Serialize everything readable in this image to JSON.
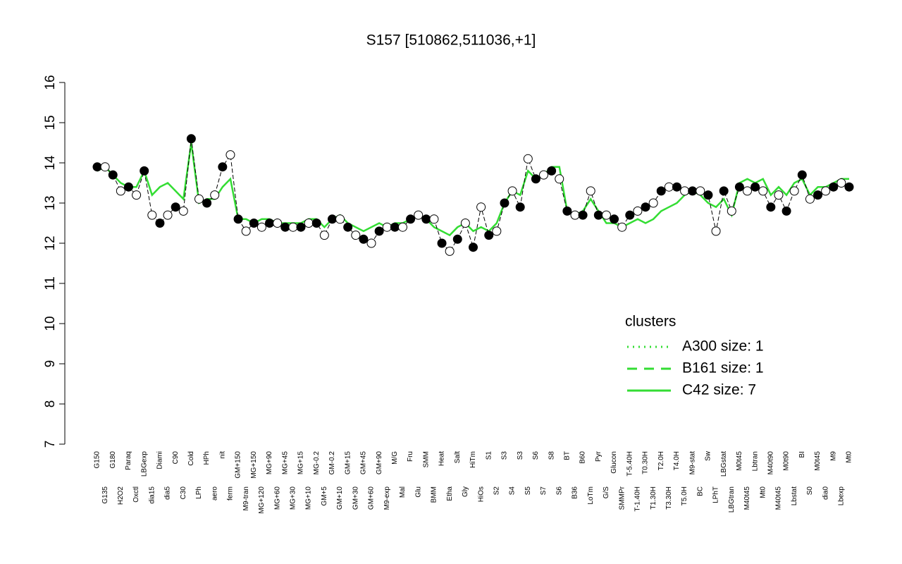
{
  "chart_data": {
    "type": "line",
    "title": "S157 [510862,511036,+1]",
    "ylim": [
      7,
      16
    ],
    "yticks": [
      7,
      8,
      9,
      10,
      11,
      12,
      13,
      14,
      15,
      16
    ],
    "categories": [
      "G150",
      "G135",
      "G180",
      "H2O2",
      "Paraq",
      "Oxctl",
      "LBGexp",
      "dia15",
      "Diami",
      "dia5",
      "C90",
      "C30",
      "Cold",
      "LPh",
      "HPh",
      "aero",
      "nit",
      "ferm",
      "GM+150",
      "M9-tran",
      "MG+150",
      "MG+120",
      "MG+90",
      "MG+60",
      "MG+45",
      "MG+30",
      "MG+15",
      "MG+10",
      "MG-0.2",
      "GM+5",
      "GM-0.2",
      "GM+10",
      "GM+15",
      "GM+30",
      "GM+45",
      "GM+60",
      "GM+90",
      "M9-exp",
      "M/G",
      "Mal",
      "Fru",
      "Glu",
      "SMM",
      "BMM",
      "Heat",
      "Etha",
      "Salt",
      "Gly",
      "HiTm",
      "HiOs",
      "S1",
      "S2",
      "S3",
      "S4",
      "S3",
      "S5",
      "S6",
      "S7",
      "S8",
      "S6",
      "BT",
      "B36",
      "B60",
      "LoTm",
      "Pyr",
      "G/S",
      "Glucon",
      "SMMPr",
      "T-5.40H",
      "T-1.40H",
      "T0.30H",
      "T1.30H",
      "T2.0H",
      "T3.30H",
      "T4.0H",
      "T5.0H",
      "M9-stat",
      "BC",
      "Sw",
      "LPhT",
      "LBGstat",
      "LBGtran",
      "M0t45",
      "M40t45",
      "Lbtran",
      "Mt0",
      "M40t90",
      "M40t45",
      "M0t90",
      "Lbstat",
      "BI",
      "S0",
      "M0t45",
      "dia0",
      "M9",
      "Lbexp",
      "Mt0"
    ],
    "points": {
      "name": "expression",
      "fills": [
        "#000000",
        "#ffffff"
      ],
      "values": [
        13.9,
        13.9,
        13.7,
        13.3,
        13.4,
        13.2,
        13.8,
        12.7,
        12.5,
        12.7,
        12.9,
        12.8,
        14.6,
        13.1,
        13.0,
        13.2,
        13.9,
        14.2,
        12.6,
        12.3,
        12.5,
        12.4,
        12.5,
        12.5,
        12.4,
        12.4,
        12.4,
        12.5,
        12.5,
        12.2,
        12.6,
        12.6,
        12.4,
        12.2,
        12.1,
        12.0,
        12.3,
        12.4,
        12.4,
        12.4,
        12.6,
        12.7,
        12.6,
        12.6,
        12.0,
        11.8,
        12.1,
        12.5,
        11.9,
        12.9,
        12.2,
        12.3,
        13.0,
        13.3,
        12.9,
        14.1,
        13.6,
        13.7,
        13.8,
        13.6,
        12.8,
        12.7,
        12.7,
        13.3,
        12.7,
        12.7,
        12.6,
        12.4,
        12.7,
        12.8,
        12.9,
        13.0,
        13.3,
        13.4,
        13.4,
        13.3,
        13.3,
        13.3,
        13.2,
        12.3,
        13.3,
        12.8,
        13.4,
        13.3,
        13.4,
        13.3,
        12.9,
        13.2,
        12.8,
        13.3,
        13.7,
        13.1,
        13.2,
        13.3,
        13.4,
        13.5,
        13.4
      ]
    },
    "series": [
      {
        "name": "C42 size: 7",
        "color": "#33dd33",
        "values": [
          13.8,
          13.9,
          13.7,
          13.5,
          13.4,
          13.4,
          13.8,
          13.2,
          13.4,
          13.5,
          13.3,
          13.1,
          14.5,
          13.0,
          13.1,
          13.1,
          13.4,
          13.6,
          12.6,
          12.6,
          12.5,
          12.6,
          12.6,
          12.5,
          12.5,
          12.5,
          12.5,
          12.6,
          12.6,
          12.4,
          12.6,
          12.7,
          12.5,
          12.4,
          12.3,
          12.4,
          12.5,
          12.4,
          12.5,
          12.5,
          12.6,
          12.7,
          12.6,
          12.4,
          12.3,
          12.2,
          12.4,
          12.5,
          12.3,
          12.4,
          12.3,
          12.5,
          13.0,
          13.3,
          13.2,
          13.8,
          13.6,
          13.7,
          13.9,
          13.9,
          12.8,
          12.7,
          12.8,
          13.1,
          12.8,
          12.5,
          12.5,
          12.4,
          12.5,
          12.6,
          12.5,
          12.6,
          12.8,
          12.9,
          13.0,
          13.2,
          13.3,
          13.2,
          13.0,
          12.9,
          13.1,
          12.7,
          13.5,
          13.6,
          13.5,
          13.6,
          13.2,
          13.4,
          13.2,
          13.5,
          13.6,
          13.2,
          13.4,
          13.4,
          13.5,
          13.6,
          13.6
        ]
      }
    ],
    "legend": {
      "title": "clusters",
      "color": "#33dd33",
      "entries": [
        {
          "name": "A300 size: 1",
          "dash": "2,6"
        },
        {
          "name": "B161 size: 1",
          "dash": "14,10"
        },
        {
          "name": "C42 size: 7",
          "dash": "none"
        }
      ]
    }
  }
}
